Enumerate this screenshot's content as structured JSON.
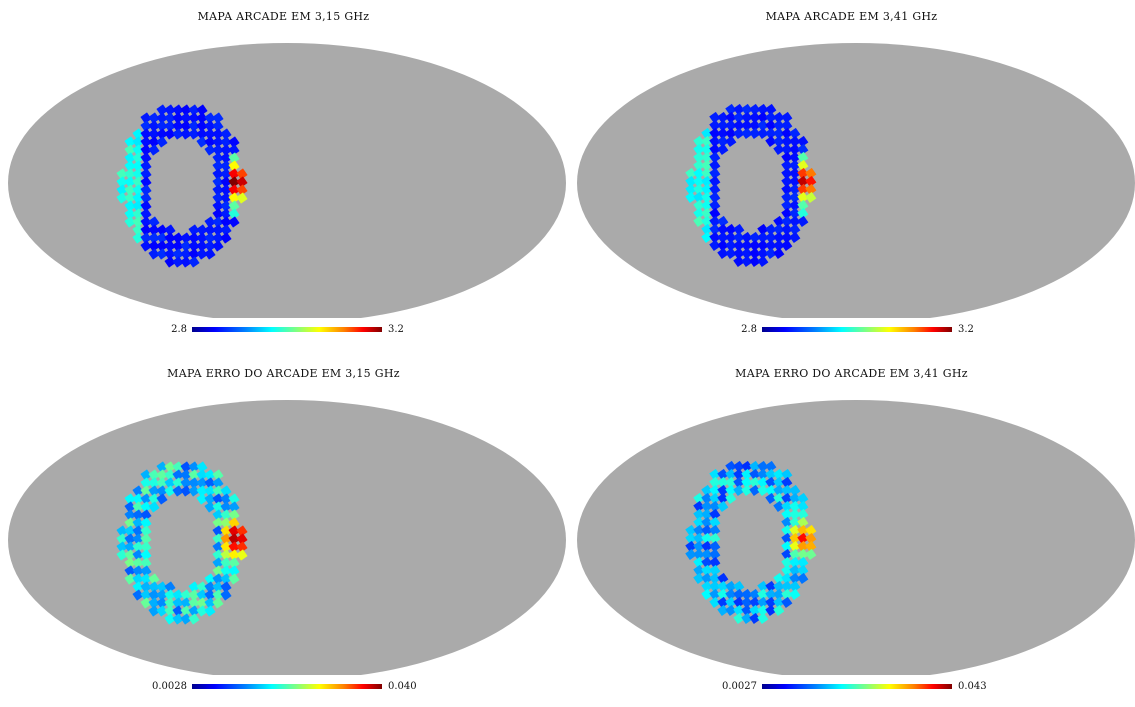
{
  "panels": [
    {
      "title": "MAPA ARCADE EM 3,15 GHz",
      "cbar_min": "2.8",
      "cbar_max": "3.2"
    },
    {
      "title": "MAPA ARCADE EM 3,41 GHz",
      "cbar_min": "2.8",
      "cbar_max": "3.2"
    },
    {
      "title": "MAPA ERRO DO ARCADE EM 3,15 GHz",
      "cbar_min": "0.0028",
      "cbar_max": "0.040"
    },
    {
      "title": "MAPA ERRO DO ARCADE EM 3,41 GHz",
      "cbar_min": "0.0027",
      "cbar_max": "0.043"
    }
  ],
  "colors": {
    "background_sky": "#aaaaaa",
    "colormap": [
      "#00008f",
      "#0000ff",
      "#0080ff",
      "#00ffff",
      "#80ff80",
      "#ffff00",
      "#ff8000",
      "#ff0000",
      "#800000"
    ]
  }
}
